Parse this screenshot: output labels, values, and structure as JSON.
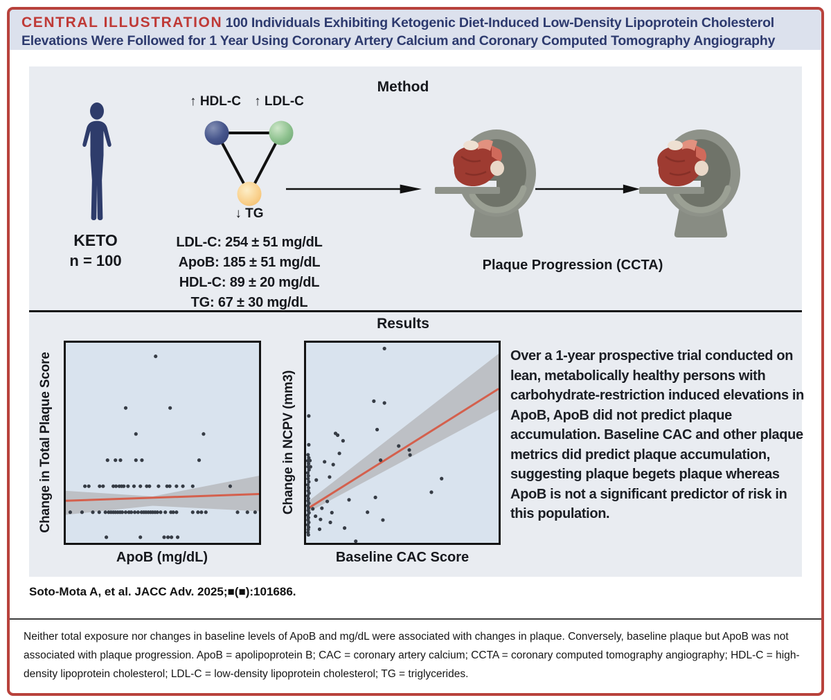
{
  "title": {
    "label": "CENTRAL ILLUSTRATION",
    "line1": "100 Individuals Exhibiting Ketogenic Diet-Induced Low-Density Lipoprotein Cholesterol",
    "line2": "Elevations Were Followed for 1 Year Using Coronary Artery Calcium and Coronary Computed Tomography Angiography"
  },
  "method": {
    "heading": "Method",
    "cohort": {
      "label": "KETO",
      "n": "n = 100"
    },
    "triangle": {
      "hdl_label": "↑ HDL-C",
      "ldl_label": "↑ LDL-C",
      "tg_label": "↓ TG",
      "node_colors": {
        "hdl": "#3c4b7e",
        "ldl": "#85bb86",
        "tg": "#f6c16e"
      }
    },
    "lipids": [
      "LDL-C: 254 ± 51 mg/dL",
      "ApoB: 185 ± 51 mg/dL",
      "HDL-C: 89 ± 20 mg/dL",
      "TG: 67 ± 30 mg/dL"
    ],
    "scan_caption": "Plaque Progression (CCTA)"
  },
  "results": {
    "heading": "Results",
    "summary": "Over a 1-year prospective trial conducted on lean, metabolically healthy persons with carbohydrate-restriction induced elevations in ApoB, ApoB did not predict plaque accumulation. Baseline CAC and other plaque metrics did predict plaque accumulation, suggesting plaque begets plaque whereas ApoB is not a significant predictor of risk in this population."
  },
  "citation": "Soto-Mota A, et al. JACC Adv. 2025;■(■):101686.",
  "footnote": "Neither total exposure nor changes in baseline levels of ApoB and mg/dL were associated with changes in plaque. Conversely, baseline plaque but ApoB was not associated with plaque progression. ApoB = apolipoprotein B; CAC = coronary artery calcium; CCTA = coronary computed tomography angiography; HDL-C = high-density lipoprotein cholesterol; LDL-C = low-density lipoprotein cholesterol; TG = triglycerides.",
  "colors": {
    "accent_red": "#bf3a37",
    "frame_red": "#b8423c",
    "title_navy": "#2d3a6e",
    "title_band_bg": "#dce1ed",
    "panel_bg": "#e9ecf1",
    "plot_bg": "#d9e3ee",
    "human_navy": "#2e3c6b",
    "scanner_gray": "#8e9289",
    "scanner_dark_gray": "#6f7369",
    "heart_red": "#9e3b31"
  },
  "chart_data": [
    {
      "type": "scatter",
      "title": "",
      "xlabel": "ApoB (mg/dL)",
      "ylabel": "Change in Total Plaque Score",
      "axis_ticks": "none (no tick labels shown); coordinates below are fractions of the plot box, origin bottom-left",
      "legend": "none",
      "grid": false,
      "point_color": "#363c45",
      "bg": "#d9e3ee",
      "regression_line": {
        "x1": 0,
        "y1": 0.21,
        "x2": 1,
        "y2": 0.244,
        "color": "#d4604d"
      },
      "confidence_band": {
        "color": "#b7babd",
        "polygon": [
          [
            0,
            0.26
          ],
          [
            0.45,
            0.232
          ],
          [
            1,
            0.335
          ],
          [
            1,
            0.158
          ],
          [
            0.45,
            0.185
          ],
          [
            0,
            0.14
          ]
        ]
      },
      "points": [
        [
          0.465,
          0.932
        ],
        [
          0.31,
          0.674
        ],
        [
          0.54,
          0.674
        ],
        [
          0.363,
          0.544
        ],
        [
          0.713,
          0.544
        ],
        [
          0.216,
          0.413
        ],
        [
          0.257,
          0.413
        ],
        [
          0.283,
          0.413
        ],
        [
          0.363,
          0.413
        ],
        [
          0.394,
          0.413
        ],
        [
          0.69,
          0.413
        ],
        [
          0.099,
          0.283
        ],
        [
          0.119,
          0.283
        ],
        [
          0.175,
          0.283
        ],
        [
          0.193,
          0.283
        ],
        [
          0.246,
          0.283
        ],
        [
          0.26,
          0.283
        ],
        [
          0.277,
          0.283
        ],
        [
          0.289,
          0.283
        ],
        [
          0.3,
          0.283
        ],
        [
          0.322,
          0.283
        ],
        [
          0.353,
          0.283
        ],
        [
          0.386,
          0.283
        ],
        [
          0.419,
          0.283
        ],
        [
          0.433,
          0.283
        ],
        [
          0.48,
          0.283
        ],
        [
          0.524,
          0.283
        ],
        [
          0.538,
          0.283
        ],
        [
          0.573,
          0.283
        ],
        [
          0.606,
          0.283
        ],
        [
          0.657,
          0.283
        ],
        [
          0.851,
          0.283
        ],
        [
          0.023,
          0.153
        ],
        [
          0.084,
          0.153
        ],
        [
          0.14,
          0.153
        ],
        [
          0.173,
          0.153
        ],
        [
          0.205,
          0.153
        ],
        [
          0.222,
          0.153
        ],
        [
          0.234,
          0.153
        ],
        [
          0.246,
          0.153
        ],
        [
          0.257,
          0.153
        ],
        [
          0.269,
          0.153
        ],
        [
          0.281,
          0.153
        ],
        [
          0.292,
          0.153
        ],
        [
          0.31,
          0.153
        ],
        [
          0.327,
          0.153
        ],
        [
          0.339,
          0.153
        ],
        [
          0.357,
          0.153
        ],
        [
          0.374,
          0.153
        ],
        [
          0.392,
          0.153
        ],
        [
          0.404,
          0.153
        ],
        [
          0.415,
          0.153
        ],
        [
          0.427,
          0.153
        ],
        [
          0.439,
          0.153
        ],
        [
          0.45,
          0.153
        ],
        [
          0.462,
          0.153
        ],
        [
          0.474,
          0.153
        ],
        [
          0.491,
          0.153
        ],
        [
          0.515,
          0.153
        ],
        [
          0.544,
          0.153
        ],
        [
          0.556,
          0.153
        ],
        [
          0.573,
          0.153
        ],
        [
          0.657,
          0.153
        ],
        [
          0.684,
          0.153
        ],
        [
          0.702,
          0.153
        ],
        [
          0.725,
          0.153
        ],
        [
          0.889,
          0.153
        ],
        [
          0.94,
          0.153
        ],
        [
          0.98,
          0.153
        ],
        [
          0.21,
          0.028
        ],
        [
          0.386,
          0.028
        ],
        [
          0.509,
          0.028
        ],
        [
          0.529,
          0.028
        ],
        [
          0.547,
          0.028
        ],
        [
          0.579,
          0.028
        ]
      ]
    },
    {
      "type": "scatter",
      "title": "",
      "xlabel": "Baseline CAC Score",
      "ylabel": "Change in NCPV (mm3)",
      "axis_ticks": "none (no tick labels shown); coordinates below are fractions of the plot box, origin bottom-left",
      "legend": "none",
      "grid": false,
      "point_color": "#363c45",
      "bg": "#d9e3ee",
      "regression_line": {
        "x1": 0.015,
        "y1": 0.175,
        "x2": 1,
        "y2": 0.77,
        "color": "#d4604d"
      },
      "confidence_band": {
        "color": "#b7babd",
        "polygon": [
          [
            0.015,
            0.21
          ],
          [
            1,
            0.945
          ],
          [
            1,
            0.665
          ],
          [
            0.015,
            0.155
          ]
        ]
      },
      "points": [
        [
          0.407,
          0.971
        ],
        [
          0.352,
          0.708
        ],
        [
          0.407,
          0.699
        ],
        [
          0.014,
          0.634
        ],
        [
          0.369,
          0.566
        ],
        [
          0.153,
          0.547
        ],
        [
          0.164,
          0.538
        ],
        [
          0.192,
          0.51
        ],
        [
          0.014,
          0.49
        ],
        [
          0.481,
          0.484
        ],
        [
          0.536,
          0.464
        ],
        [
          0.54,
          0.439
        ],
        [
          0.173,
          0.447
        ],
        [
          0.387,
          0.413
        ],
        [
          0.096,
          0.405
        ],
        [
          0.141,
          0.391
        ],
        [
          0.02,
          0.411
        ],
        [
          0.023,
          0.38
        ],
        [
          0.122,
          0.329
        ],
        [
          0.053,
          0.314
        ],
        [
          0.704,
          0.321
        ],
        [
          0.651,
          0.253
        ],
        [
          0.11,
          0.207
        ],
        [
          0.223,
          0.215
        ],
        [
          0.36,
          0.227
        ],
        [
          0.035,
          0.17
        ],
        [
          0.082,
          0.173
        ],
        [
          0.134,
          0.151
        ],
        [
          0.319,
          0.153
        ],
        [
          0.049,
          0.133
        ],
        [
          0.126,
          0.102
        ],
        [
          0.399,
          0.114
        ],
        [
          0.075,
          0.117
        ],
        [
          0.2,
          0.074
        ],
        [
          0.07,
          0.068
        ],
        [
          0.258,
          0.008
        ],
        [
          0.01,
          0.44
        ],
        [
          0.014,
          0.425
        ],
        [
          0.009,
          0.41
        ],
        [
          0.013,
          0.395
        ],
        [
          0.01,
          0.38
        ],
        [
          0.015,
          0.365
        ],
        [
          0.009,
          0.35
        ],
        [
          0.012,
          0.335
        ],
        [
          0.01,
          0.32
        ],
        [
          0.014,
          0.305
        ],
        [
          0.009,
          0.29
        ],
        [
          0.013,
          0.275
        ],
        [
          0.011,
          0.26
        ],
        [
          0.015,
          0.248
        ],
        [
          0.009,
          0.235
        ],
        [
          0.012,
          0.222
        ],
        [
          0.01,
          0.21
        ],
        [
          0.014,
          0.198
        ],
        [
          0.009,
          0.186
        ],
        [
          0.013,
          0.174
        ],
        [
          0.011,
          0.162
        ],
        [
          0.015,
          0.15
        ],
        [
          0.009,
          0.138
        ],
        [
          0.012,
          0.126
        ],
        [
          0.01,
          0.114
        ],
        [
          0.014,
          0.102
        ],
        [
          0.009,
          0.09
        ],
        [
          0.013,
          0.078
        ],
        [
          0.011,
          0.066
        ],
        [
          0.01,
          0.052
        ],
        [
          0.012,
          0.04
        ]
      ]
    }
  ]
}
